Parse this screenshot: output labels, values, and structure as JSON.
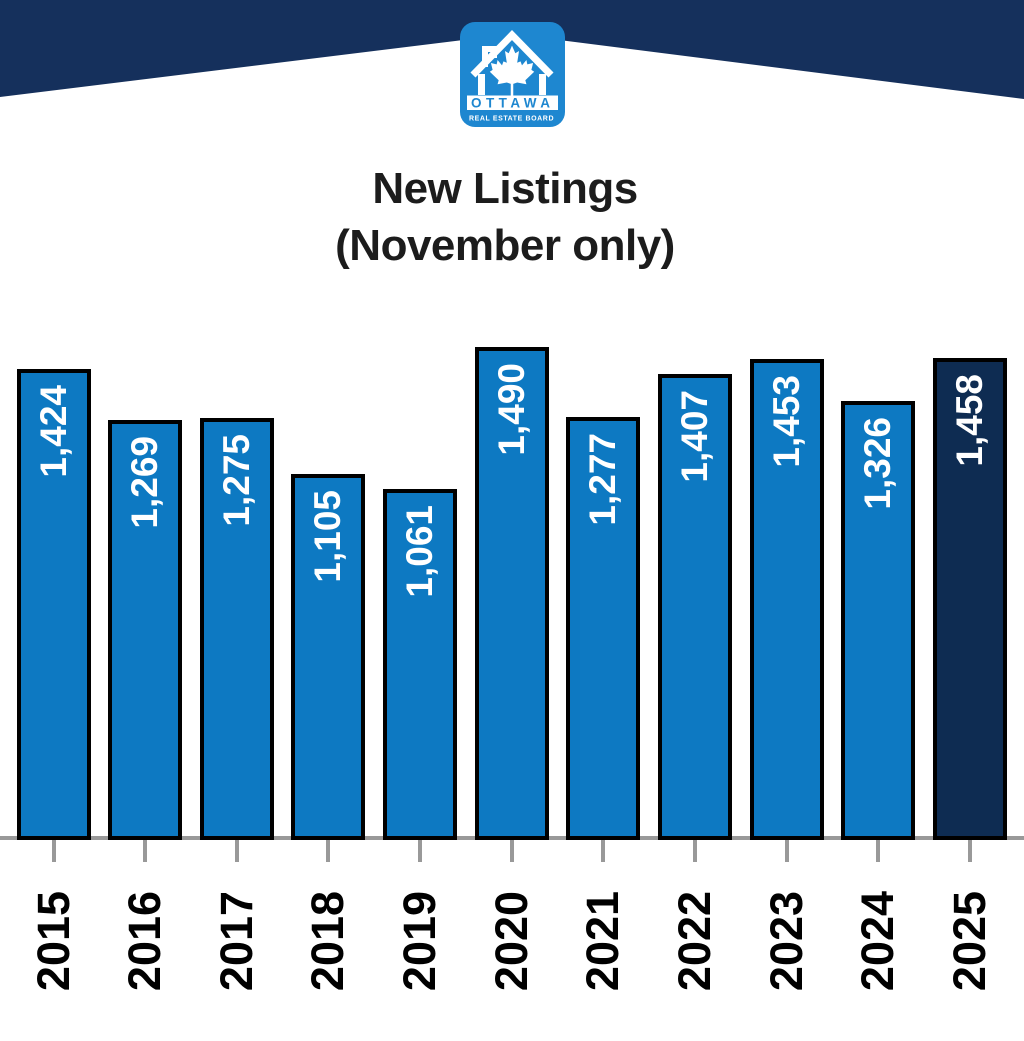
{
  "header": {
    "logo": {
      "org_line1": "OTTAWA",
      "org_line2": "REAL ESTATE BOARD"
    }
  },
  "title": {
    "line1": "New Listings",
    "line2": "(November only)"
  },
  "chart_data": {
    "type": "bar",
    "title": "New Listings (November only)",
    "categories": [
      "2015",
      "2016",
      "2017",
      "2018",
      "2019",
      "2020",
      "2021",
      "2022",
      "2023",
      "2024",
      "2025"
    ],
    "values": [
      1424,
      1269,
      1275,
      1105,
      1061,
      1490,
      1277,
      1407,
      1453,
      1326,
      1458
    ],
    "value_labels": [
      "1,424",
      "1,269",
      "1,275",
      "1,105",
      "1,061",
      "1,490",
      "1,277",
      "1,407",
      "1,453",
      "1,326",
      "1,458"
    ],
    "xlabel": "",
    "ylabel": "",
    "ylim": [
      0,
      1500
    ],
    "grid": false,
    "legend": "none",
    "orientation": "vertical",
    "value_label_position": "inside-top-rotated",
    "highlight_index": 10,
    "colors": {
      "bar": "#0d79c2",
      "highlight_bar": "#0e2c52",
      "bar_border": "#000000",
      "value_label": "#ffffff",
      "axis": "#999999",
      "tick_label": "#000000"
    }
  },
  "theme": {
    "header_navy": "#15305c",
    "logo_blue": "#1e87d0",
    "background": "#ffffff",
    "title_color": "#1c1c1c"
  }
}
